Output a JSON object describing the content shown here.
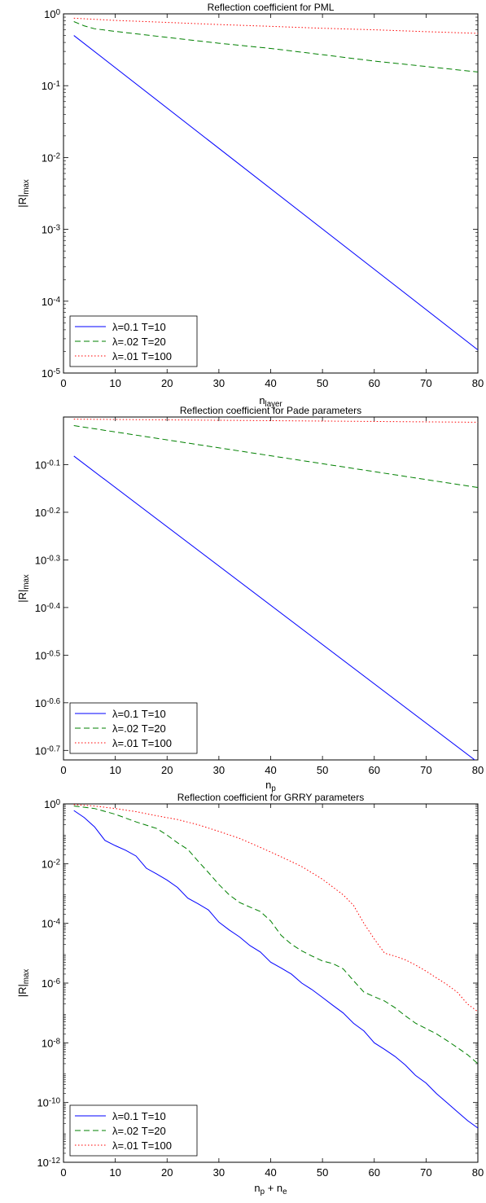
{
  "chart_data": [
    {
      "type": "line",
      "title": "Reflection coefficient for PML",
      "ylabel_main": "|R|",
      "ylabel_sub": "max",
      "xlabel_main": "n",
      "xlabel_sub": "layer",
      "x_scale": "linear",
      "y_scale": "log",
      "xlim": [
        0,
        80
      ],
      "ylim": [
        1e-05,
        1
      ],
      "xticks": [
        0,
        10,
        20,
        30,
        40,
        50,
        60,
        70,
        80
      ],
      "yticks": [
        {
          "label": "10",
          "exp": "-5",
          "value": 1e-05
        },
        {
          "label": "10",
          "exp": "-4",
          "value": 0.0001
        },
        {
          "label": "10",
          "exp": "-3",
          "value": 0.001
        },
        {
          "label": "10",
          "exp": "-2",
          "value": 0.01
        },
        {
          "label": "10",
          "exp": "-1",
          "value": 0.1
        },
        {
          "label": "10",
          "exp": "0",
          "value": 1
        }
      ],
      "grid": false,
      "legend_position": "bottom-left",
      "series": [
        {
          "name": "λ=0.1 T=10",
          "color": "#0000ff",
          "style": "solid",
          "x": [
            2,
            80
          ],
          "y": [
            0.5,
            2.1e-05
          ]
        },
        {
          "name": "λ=.02 T=20",
          "color": "#008000",
          "style": "dashed",
          "x": [
            2,
            4,
            6,
            10,
            20,
            30,
            40,
            50,
            60,
            70,
            80
          ],
          "y": [
            0.78,
            0.68,
            0.62,
            0.57,
            0.47,
            0.39,
            0.33,
            0.27,
            0.22,
            0.185,
            0.155
          ]
        },
        {
          "name": "λ=.01 T=100",
          "color": "#ff0000",
          "style": "dotted",
          "x": [
            2,
            10,
            20,
            30,
            40,
            50,
            60,
            70,
            80
          ],
          "y": [
            0.87,
            0.81,
            0.76,
            0.71,
            0.67,
            0.63,
            0.6,
            0.565,
            0.535
          ]
        }
      ]
    },
    {
      "type": "line",
      "title": "Reflection coefficient for Pade parameters",
      "ylabel_main": "|R|",
      "ylabel_sub": "max",
      "xlabel_main": "n",
      "xlabel_sub": "p",
      "x_scale": "linear",
      "y_scale": "log",
      "xlim": [
        0,
        80
      ],
      "ylim": [
        -0.72,
        0.0
      ],
      "xticks": [
        0,
        10,
        20,
        30,
        40,
        50,
        60,
        70,
        80
      ],
      "yticks": [
        {
          "label": "10",
          "exp": "-0.1",
          "value": -0.1
        },
        {
          "label": "10",
          "exp": "-0.2",
          "value": -0.2
        },
        {
          "label": "10",
          "exp": "-0.3",
          "value": -0.3
        },
        {
          "label": "10",
          "exp": "-0.4",
          "value": -0.4
        },
        {
          "label": "10",
          "exp": "-0.5",
          "value": -0.5
        },
        {
          "label": "10",
          "exp": "-0.6",
          "value": -0.6
        },
        {
          "label": "10",
          "exp": "-0.7",
          "value": -0.7
        }
      ],
      "grid": false,
      "legend_position": "bottom-left",
      "series": [
        {
          "name": "λ=0.1 T=10",
          "color": "#0000ff",
          "style": "solid",
          "x": [
            2,
            80
          ],
          "y": [
            -0.082,
            -0.725
          ]
        },
        {
          "name": "λ=.02 T=20",
          "color": "#008000",
          "style": "dashed",
          "x": [
            2,
            80
          ],
          "y": [
            -0.018,
            -0.148
          ]
        },
        {
          "name": "λ=.01 T=100",
          "color": "#ff0000",
          "style": "dotted",
          "x": [
            2,
            80
          ],
          "y": [
            -0.0045,
            -0.011
          ]
        }
      ]
    },
    {
      "type": "line",
      "title": "Reflection coefficient for GRRY parameters",
      "ylabel_main": "|R|",
      "ylabel_sub": "max",
      "xlabel_main": "n",
      "xlabel_sub": "p",
      "xlabel_mid": " + n",
      "xlabel_sub2": "e",
      "x_scale": "linear",
      "y_scale": "log",
      "xlim": [
        0,
        80
      ],
      "ylim": [
        1e-12,
        1
      ],
      "xticks": [
        0,
        10,
        20,
        30,
        40,
        50,
        60,
        70,
        80
      ],
      "yticks": [
        {
          "label": "10",
          "exp": "-12",
          "value": 1e-12
        },
        {
          "label": "10",
          "exp": "-10",
          "value": 1e-10
        },
        {
          "label": "10",
          "exp": "-8",
          "value": 1e-08
        },
        {
          "label": "10",
          "exp": "-6",
          "value": 1e-06
        },
        {
          "label": "10",
          "exp": "-4",
          "value": 0.0001
        },
        {
          "label": "10",
          "exp": "-2",
          "value": 0.01
        },
        {
          "label": "10",
          "exp": "0",
          "value": 1
        }
      ],
      "grid": false,
      "legend_position": "bottom-left",
      "series": [
        {
          "name": "λ=0.1 T=10",
          "color": "#0000ff",
          "style": "solid",
          "x": [
            2,
            4,
            6,
            8,
            10,
            12,
            14,
            16,
            18,
            20,
            22,
            24,
            26,
            28,
            30,
            32,
            34,
            36,
            38,
            40,
            42,
            44,
            46,
            48,
            50,
            52,
            54,
            56,
            58,
            60,
            62,
            64,
            66,
            68,
            70,
            72,
            74,
            76,
            78,
            80
          ],
          "y": [
            0.6,
            0.35,
            0.17,
            0.06,
            0.04,
            0.028,
            0.018,
            0.007,
            0.0045,
            0.0028,
            0.0016,
            0.0007,
            0.00045,
            0.00028,
            0.00011,
            6e-05,
            3.5e-05,
            1.8e-05,
            1.1e-05,
            5e-06,
            3.2e-06,
            2e-06,
            1e-06,
            6e-07,
            3.3e-07,
            1.8e-07,
            1e-07,
            4.5e-08,
            2.5e-08,
            1e-08,
            6e-09,
            3.5e-09,
            1.8e-09,
            8e-10,
            4.5e-10,
            2e-10,
            1e-10,
            5e-11,
            2.5e-11,
            1.4e-11
          ]
        },
        {
          "name": "λ=.02 T=20",
          "color": "#008000",
          "style": "dashed",
          "x": [
            2,
            6,
            10,
            14,
            18,
            20,
            22,
            24,
            26,
            28,
            30,
            32,
            34,
            36,
            38,
            40,
            42,
            44,
            46,
            48,
            50,
            52,
            54,
            56,
            58,
            60,
            62,
            64,
            66,
            68,
            70,
            72,
            74,
            76,
            78,
            80
          ],
          "y": [
            0.85,
            0.7,
            0.45,
            0.25,
            0.15,
            0.09,
            0.05,
            0.03,
            0.012,
            0.005,
            0.002,
            0.0009,
            0.0005,
            0.00035,
            0.00025,
            0.00012,
            4e-05,
            2e-05,
            1.2e-05,
            8e-06,
            5.5e-06,
            4.5e-06,
            3e-06,
            1.2e-06,
            5e-07,
            3.5e-07,
            2.5e-07,
            1.5e-07,
            8e-08,
            4.5e-08,
            3e-08,
            2e-08,
            1.2e-08,
            7e-09,
            4e-09,
            2e-09
          ]
        },
        {
          "name": "λ=.01 T=100",
          "color": "#ff0000",
          "style": "dotted",
          "x": [
            2,
            6,
            10,
            14,
            18,
            22,
            26,
            30,
            34,
            38,
            42,
            46,
            50,
            54,
            56,
            58,
            60,
            62,
            64,
            66,
            68,
            70,
            72,
            74,
            76,
            78,
            80
          ],
          "y": [
            0.95,
            0.85,
            0.7,
            0.55,
            0.4,
            0.3,
            0.2,
            0.12,
            0.07,
            0.035,
            0.017,
            0.008,
            0.003,
            0.0009,
            0.0004,
            0.0001,
            3e-05,
            1e-05,
            8e-06,
            6e-06,
            4e-06,
            2.5e-06,
            1.5e-06,
            9e-07,
            5e-07,
            2e-07,
            1.1e-07
          ]
        }
      ]
    }
  ]
}
